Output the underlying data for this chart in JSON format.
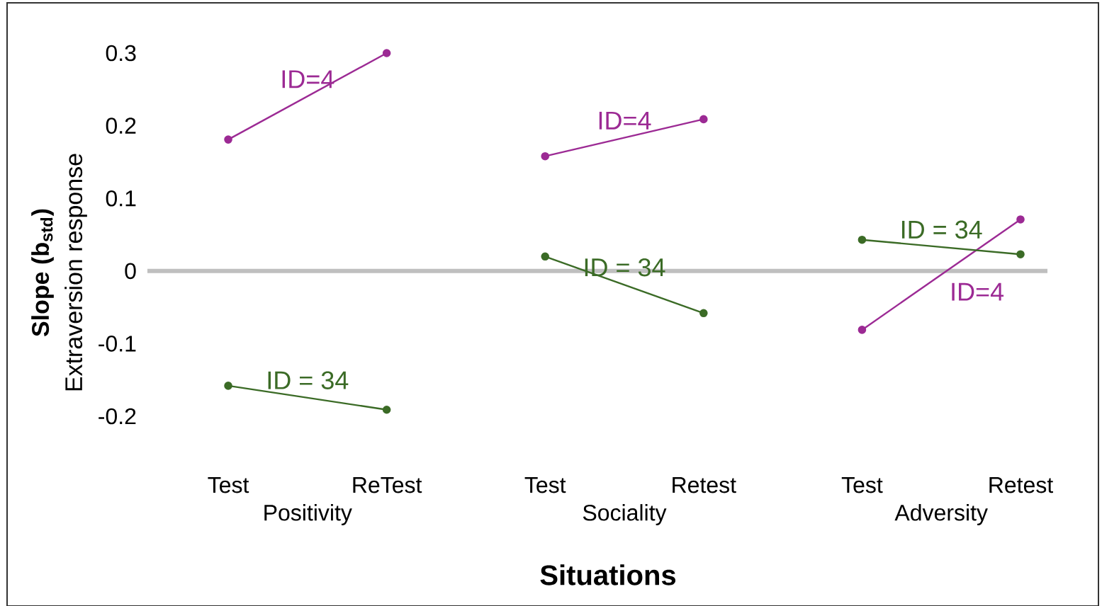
{
  "chart_data": {
    "type": "line",
    "categories": [
      "Test",
      "ReTest",
      "Test",
      "Retest",
      "Test",
      "Retest"
    ],
    "xlabel": "Situations",
    "ylabel": "Slope (b$_{std}$)",
    "annotations": [
      "Extraversion response",
      "Positivity",
      "Sociality",
      "Adversity"
    ],
    "ylim": [
      -0.2,
      0.3
    ],
    "yticks": [
      -0.2,
      -0.1,
      0,
      0.1,
      0.2,
      0.3
    ],
    "marker": "circle",
    "ref_lines": [
      {
        "axis": "y",
        "value": 0,
        "color": "#bfbfbf"
      }
    ],
    "series": [
      {
        "name": "ID=4",
        "color": "#9c2a94",
        "values": [
          0.181,
          0.3,
          null,
          null,
          null,
          null
        ]
      },
      {
        "name": "ID = 34",
        "color": "#3b6b26",
        "values": [
          -0.158,
          -0.191,
          null,
          null,
          null,
          null
        ]
      },
      {
        "name": "ID=4",
        "color": "#9c2a94",
        "values": [
          null,
          null,
          0.158,
          0.209,
          null,
          null
        ]
      },
      {
        "name": "ID = 34",
        "color": "#3b6b26",
        "values": [
          null,
          null,
          0.02,
          -0.058,
          null,
          null
        ]
      },
      {
        "name": "ID=4",
        "color": "#9c2a94",
        "values": [
          null,
          null,
          null,
          null,
          -0.081,
          0.071
        ]
      },
      {
        "name": "ID = 34",
        "color": "#3b6b26",
        "values": [
          null,
          null,
          null,
          null,
          0.043,
          0.023
        ]
      }
    ]
  }
}
